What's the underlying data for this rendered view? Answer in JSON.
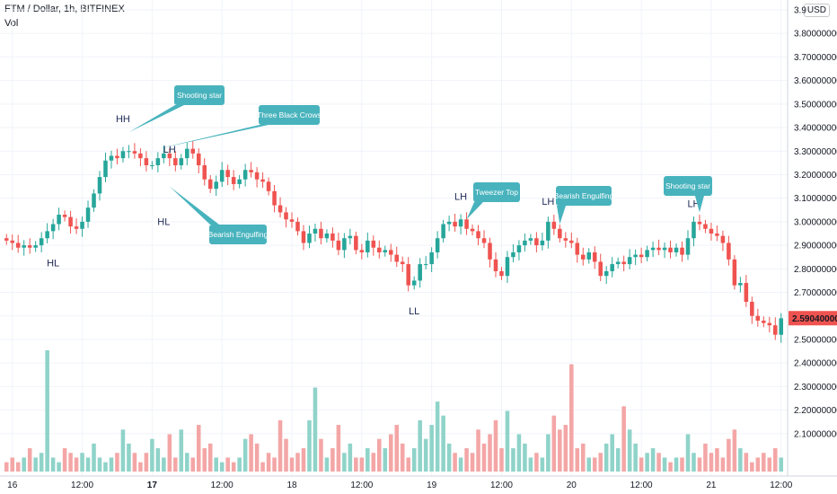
{
  "header": {
    "title": "FTM / Dollar, 1h, BITFINEX",
    "volume_label": "Vol",
    "currency_button": "USD"
  },
  "colors": {
    "up": "#26a69a",
    "down": "#ef5350",
    "vol_up": "#8fd3c9",
    "vol_down": "#f4a6a6",
    "callout": "#48b3bd",
    "price_badge": "#ef5350",
    "grid": "#f0f3fa"
  },
  "current_price": {
    "value": 2.5904,
    "label": "2.59040000"
  },
  "chart_data": {
    "type": "candlestick",
    "y_axis": {
      "min": 2.0,
      "max": 3.9,
      "ticks": [
        "2.10000000",
        "2.20000000",
        "2.30000000",
        "2.40000000",
        "2.50000000",
        "2.60000000",
        "2.70000000",
        "2.80000000",
        "2.90000000",
        "3.00000000",
        "3.10000000",
        "3.20000000",
        "3.30000000",
        "3.40000000",
        "3.50000000",
        "3.60000000",
        "3.70000000",
        "3.80000000",
        "3.9"
      ]
    },
    "x_axis": {
      "ticks": [
        {
          "label": "16",
          "bold": false,
          "t": 1
        },
        {
          "label": "12:00",
          "bold": false,
          "t": 13
        },
        {
          "label": "17",
          "bold": true,
          "t": 25
        },
        {
          "label": "12:00",
          "bold": false,
          "t": 37
        },
        {
          "label": "18",
          "bold": false,
          "t": 49
        },
        {
          "label": "12:00",
          "bold": false,
          "t": 61
        },
        {
          "label": "19",
          "bold": false,
          "t": 73
        },
        {
          "label": "12:00",
          "bold": false,
          "t": 85
        },
        {
          "label": "20",
          "bold": false,
          "t": 97
        },
        {
          "label": "12:00",
          "bold": false,
          "t": 109
        },
        {
          "label": "21",
          "bold": false,
          "t": 121
        },
        {
          "label": "12:00",
          "bold": false,
          "t": 133
        }
      ]
    },
    "close": [
      2.92,
      2.91,
      2.89,
      2.9,
      2.89,
      2.9,
      2.93,
      2.96,
      2.99,
      3.03,
      3.02,
      2.98,
      2.97,
      3.0,
      3.06,
      3.12,
      3.19,
      3.26,
      3.28,
      3.27,
      3.3,
      3.3,
      3.29,
      3.27,
      3.24,
      3.24,
      3.27,
      3.29,
      3.27,
      3.24,
      3.27,
      3.31,
      3.29,
      3.24,
      3.18,
      3.14,
      3.17,
      3.22,
      3.19,
      3.16,
      3.18,
      3.22,
      3.21,
      3.18,
      3.17,
      3.13,
      3.07,
      3.04,
      3.01,
      3.0,
      2.96,
      2.91,
      2.95,
      2.97,
      2.93,
      2.95,
      2.92,
      2.88,
      2.93,
      2.94,
      2.88,
      2.87,
      2.92,
      2.89,
      2.87,
      2.88,
      2.86,
      2.83,
      2.82,
      2.73,
      2.75,
      2.82,
      2.82,
      2.87,
      2.93,
      2.99,
      3.0,
      2.98,
      3.01,
      2.97,
      2.96,
      2.93,
      2.91,
      2.84,
      2.79,
      2.77,
      2.85,
      2.87,
      2.9,
      2.92,
      2.93,
      2.9,
      2.92,
      3.0,
      2.97,
      2.93,
      2.92,
      2.91,
      2.86,
      2.84,
      2.87,
      2.83,
      2.77,
      2.79,
      2.82,
      2.83,
      2.82,
      2.85,
      2.86,
      2.85,
      2.88,
      2.89,
      2.88,
      2.89,
      2.87,
      2.89,
      2.86,
      2.93,
      3.0,
      2.99,
      2.97,
      2.95,
      2.94,
      2.91,
      2.84,
      2.73,
      2.74,
      2.66,
      2.6,
      2.58,
      2.57,
      2.56,
      2.52,
      2.59
    ],
    "open": [
      2.93,
      2.92,
      2.91,
      2.89,
      2.9,
      2.89,
      2.9,
      2.93,
      2.96,
      2.99,
      3.03,
      3.02,
      2.98,
      2.97,
      3.0,
      3.06,
      3.12,
      3.19,
      3.26,
      3.28,
      3.27,
      3.3,
      3.3,
      3.29,
      3.27,
      3.24,
      3.24,
      3.27,
      3.29,
      3.27,
      3.24,
      3.27,
      3.31,
      3.29,
      3.24,
      3.18,
      3.14,
      3.17,
      3.22,
      3.19,
      3.16,
      3.18,
      3.22,
      3.21,
      3.18,
      3.17,
      3.13,
      3.07,
      3.04,
      3.01,
      3.0,
      2.96,
      2.91,
      2.95,
      2.97,
      2.93,
      2.95,
      2.92,
      2.88,
      2.93,
      2.94,
      2.88,
      2.87,
      2.92,
      2.89,
      2.87,
      2.88,
      2.86,
      2.83,
      2.82,
      2.73,
      2.75,
      2.82,
      2.82,
      2.87,
      2.93,
      2.99,
      3.0,
      2.98,
      3.01,
      2.97,
      2.96,
      2.93,
      2.91,
      2.84,
      2.79,
      2.77,
      2.85,
      2.87,
      2.9,
      2.92,
      2.93,
      2.9,
      2.92,
      3.0,
      2.97,
      2.93,
      2.92,
      2.91,
      2.86,
      2.84,
      2.87,
      2.83,
      2.77,
      2.79,
      2.82,
      2.83,
      2.82,
      2.85,
      2.86,
      2.85,
      2.88,
      2.89,
      2.88,
      2.89,
      2.87,
      2.89,
      2.86,
      2.93,
      3.0,
      2.99,
      2.97,
      2.95,
      2.94,
      2.91,
      2.84,
      2.73,
      2.74,
      2.66,
      2.6,
      2.58,
      2.57,
      2.56,
      2.52
    ],
    "volume": [
      0.2,
      0.3,
      0.2,
      0.3,
      0.5,
      0.3,
      0.4,
      2.6,
      0.3,
      0.2,
      0.5,
      0.4,
      0.3,
      0.4,
      0.3,
      0.6,
      0.3,
      0.2,
      0.3,
      0.4,
      0.9,
      0.6,
      0.4,
      0.2,
      0.4,
      0.7,
      0.5,
      0.3,
      0.8,
      0.3,
      0.9,
      0.4,
      0.3,
      1.0,
      0.5,
      0.6,
      0.3,
      0.2,
      0.3,
      0.2,
      0.3,
      0.7,
      0.8,
      0.6,
      0.2,
      0.4,
      0.3,
      1.1,
      0.7,
      0.3,
      0.4,
      0.5,
      1.1,
      1.8,
      0.7,
      0.3,
      0.5,
      1.0,
      0.4,
      0.6,
      0.3,
      0.3,
      0.5,
      0.4,
      0.7,
      0.5,
      0.8,
      1.0,
      0.6,
      0.3,
      0.5,
      1.1,
      0.7,
      1.0,
      1.5,
      1.2,
      0.6,
      0.4,
      0.3,
      0.5,
      0.4,
      0.9,
      0.6,
      0.8,
      1.1,
      0.5,
      1.3,
      0.5,
      0.8,
      0.6,
      0.3,
      0.4,
      0.3,
      0.8,
      1.2,
      0.9,
      1.0,
      2.3,
      0.5,
      0.6,
      0.3,
      0.3,
      0.4,
      0.6,
      0.8,
      0.5,
      1.4,
      0.9,
      0.6,
      0.3,
      0.4,
      0.5,
      0.4,
      0.3,
      0.2,
      0.3,
      0.3,
      0.8,
      0.4,
      0.3,
      0.6,
      0.4,
      0.5,
      0.3,
      0.7,
      0.9,
      0.5,
      0.4,
      0.2,
      0.3,
      0.4,
      0.3,
      0.5,
      0.3
    ]
  },
  "annotations": {
    "swing_labels": [
      {
        "text": "HL",
        "t": 8,
        "price": 2.865,
        "pos": "below"
      },
      {
        "text": "HH",
        "t": 20,
        "price": 3.4,
        "pos": "above"
      },
      {
        "text": "LH",
        "t": 28,
        "price": 3.27,
        "pos": "above"
      },
      {
        "text": "HL",
        "t": 27,
        "price": 3.04,
        "pos": "below"
      },
      {
        "text": "LL",
        "t": 70,
        "price": 2.66,
        "pos": "below"
      },
      {
        "text": "LH",
        "t": 78,
        "price": 3.07,
        "pos": "above"
      },
      {
        "text": "LH",
        "t": 93,
        "price": 3.05,
        "pos": "above"
      },
      {
        "text": "LH",
        "t": 118,
        "price": 3.04,
        "pos": "above"
      }
    ],
    "callouts": [
      {
        "text": "Shooting star",
        "t": 21,
        "price": 3.38,
        "boxCx": 222,
        "boxCy": 106,
        "w": 56,
        "h": 22
      },
      {
        "text": "Three Black Crows",
        "t": 26,
        "price": 3.31,
        "boxCx": 322,
        "boxCy": 128,
        "w": 68,
        "h": 22
      },
      {
        "text": "Bearish Engulfing",
        "t": 28,
        "price": 3.15,
        "boxCx": 265,
        "boxCy": 261,
        "w": 64,
        "h": 22
      },
      {
        "text": "Tweezer Top",
        "t": 79,
        "price": 3.01,
        "boxCx": 553,
        "boxCy": 214,
        "w": 52,
        "h": 22
      },
      {
        "text": "Bearish Engulfing",
        "t": 95,
        "price": 2.99,
        "boxCx": 650,
        "boxCy": 218,
        "w": 62,
        "h": 22
      },
      {
        "text": "Shooting star",
        "t": 119,
        "price": 3.04,
        "boxCx": 766,
        "boxCy": 207,
        "w": 54,
        "h": 22
      }
    ]
  }
}
